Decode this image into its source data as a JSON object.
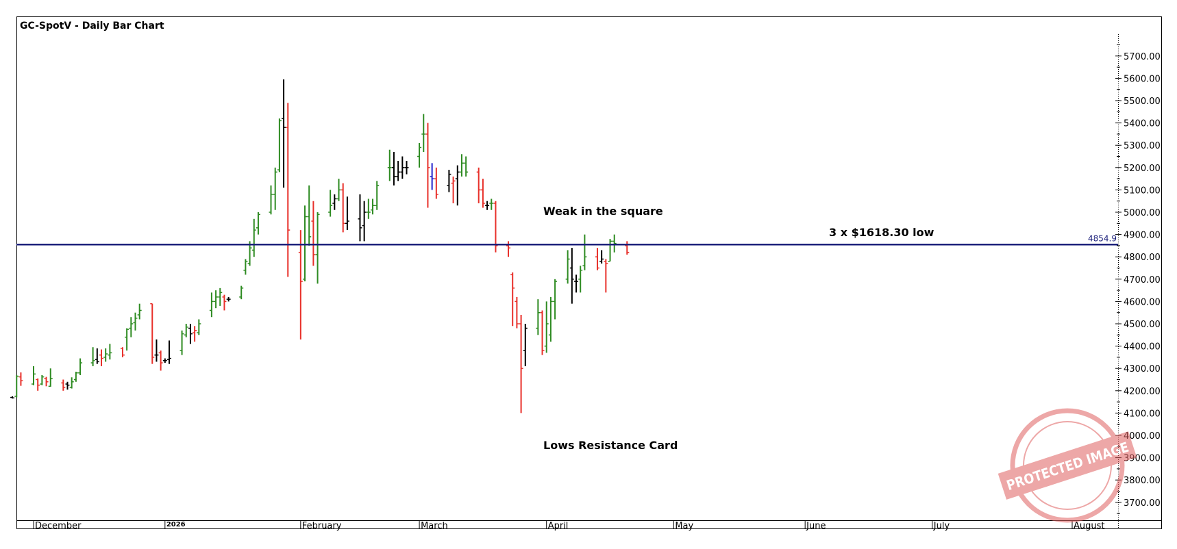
{
  "chart_data": {
    "type": "bar",
    "title": "GC-SpotV - Daily Bar Chart",
    "ylim": [
      3600,
      5800
    ],
    "y_ticks": [
      3700,
      3800,
      3900,
      4000,
      4100,
      4200,
      4300,
      4400,
      4500,
      4600,
      4700,
      4800,
      4900,
      5000,
      5100,
      5200,
      5300,
      5400,
      5500,
      5600,
      5700
    ],
    "y_tick_labels": [
      "3700.00",
      "3800.00",
      "3900.00",
      "4000.00",
      "4100.00",
      "4200.00",
      "4300.00",
      "4400.00",
      "4500.00",
      "4600.00",
      "4700.00",
      "4800.00",
      "4900.00",
      "5000.00",
      "5100.00",
      "5200.00",
      "5300.00",
      "5400.00",
      "5500.00",
      "5600.00",
      "5700.00"
    ],
    "x_tick_labels": [
      {
        "label": "December",
        "date": "2025-12-01"
      },
      {
        "label": "2026",
        "date": "2026-01-01"
      },
      {
        "label": "February",
        "date": "2026-02-02"
      },
      {
        "label": "March",
        "date": "2026-03-02"
      },
      {
        "label": "April",
        "date": "2026-04-01"
      },
      {
        "label": "May",
        "date": "2026-05-01"
      },
      {
        "label": "June",
        "date": "2026-06-01"
      },
      {
        "label": "July",
        "date": "2026-07-01"
      },
      {
        "label": "August",
        "date": "2026-08-03"
      }
    ],
    "grid": false,
    "bar_colors": {
      "up": "#2e8b22",
      "down": "#e8302a",
      "neutral": "#000000",
      "blue": "#2222cc"
    },
    "horizontal_line": {
      "value": 4854.9,
      "label": "4854.9",
      "color": "#1b1f7a"
    },
    "annotations": [
      {
        "text": "Weak in the square"
      },
      {
        "text": "3 x $1618.30 low"
      },
      {
        "text": "Lows Resistance Card"
      }
    ],
    "watermark_text": "PROTECTED IMAGE",
    "series": [
      {
        "values": [
          {
            "date": "2025-11-26",
            "o": 4170,
            "h": 4175,
            "l": 4165,
            "c": 4168,
            "d": "n"
          },
          {
            "date": "2025-11-27",
            "o": 4175,
            "h": 4270,
            "l": 4170,
            "c": 4265,
            "d": "u"
          },
          {
            "date": "2025-11-28",
            "o": 4262,
            "h": 4282,
            "l": 4222,
            "c": 4245,
            "d": "d"
          },
          {
            "date": "2025-12-01",
            "o": 4230,
            "h": 4310,
            "l": 4225,
            "c": 4275,
            "d": "u"
          },
          {
            "date": "2025-12-02",
            "o": 4250,
            "h": 4255,
            "l": 4200,
            "c": 4225,
            "d": "d"
          },
          {
            "date": "2025-12-03",
            "o": 4230,
            "h": 4270,
            "l": 4225,
            "c": 4262,
            "d": "u"
          },
          {
            "date": "2025-12-04",
            "o": 4255,
            "h": 4262,
            "l": 4220,
            "c": 4240,
            "d": "d"
          },
          {
            "date": "2025-12-05",
            "o": 4220,
            "h": 4300,
            "l": 4218,
            "c": 4255,
            "d": "u"
          },
          {
            "date": "2025-12-08",
            "o": 4235,
            "h": 4250,
            "l": 4200,
            "c": 4215,
            "d": "d"
          },
          {
            "date": "2025-12-09",
            "o": 4230,
            "h": 4240,
            "l": 4205,
            "c": 4225,
            "d": "n"
          },
          {
            "date": "2025-12-10",
            "o": 4215,
            "h": 4260,
            "l": 4210,
            "c": 4240,
            "d": "u"
          },
          {
            "date": "2025-12-11",
            "o": 4250,
            "h": 4285,
            "l": 4240,
            "c": 4280,
            "d": "u"
          },
          {
            "date": "2025-12-12",
            "o": 4280,
            "h": 4345,
            "l": 4270,
            "c": 4325,
            "d": "u"
          },
          {
            "date": "2025-12-15",
            "o": 4325,
            "h": 4395,
            "l": 4310,
            "c": 4335,
            "d": "u"
          },
          {
            "date": "2025-12-16",
            "o": 4340,
            "h": 4390,
            "l": 4320,
            "c": 4330,
            "d": "n"
          },
          {
            "date": "2025-12-17",
            "o": 4360,
            "h": 4385,
            "l": 4310,
            "c": 4345,
            "d": "d"
          },
          {
            "date": "2025-12-18",
            "o": 4350,
            "h": 4390,
            "l": 4330,
            "c": 4365,
            "d": "u"
          },
          {
            "date": "2025-12-19",
            "o": 4360,
            "h": 4410,
            "l": 4340,
            "c": 4370,
            "d": "u"
          },
          {
            "date": "2025-12-22",
            "o": 4390,
            "h": 4395,
            "l": 4350,
            "c": 4360,
            "d": "d"
          },
          {
            "date": "2025-12-23",
            "o": 4440,
            "h": 4480,
            "l": 4380,
            "c": 4475,
            "d": "u"
          },
          {
            "date": "2025-12-24",
            "o": 4480,
            "h": 4530,
            "l": 4440,
            "c": 4500,
            "d": "u"
          },
          {
            "date": "2025-12-25",
            "o": 4505,
            "h": 4550,
            "l": 4470,
            "c": 4525,
            "d": "u"
          },
          {
            "date": "2025-12-26",
            "o": 4540,
            "h": 4590,
            "l": 4520,
            "c": 4560,
            "d": "u"
          },
          {
            "date": "2025-12-29",
            "o": 4590,
            "h": 4590,
            "l": 4320,
            "c": 4350,
            "d": "d"
          },
          {
            "date": "2025-12-30",
            "o": 4360,
            "h": 4430,
            "l": 4330,
            "c": 4360,
            "d": "n"
          },
          {
            "date": "2025-12-31",
            "o": 4370,
            "h": 4380,
            "l": 4290,
            "c": 4325,
            "d": "d"
          },
          {
            "date": "2026-01-01",
            "o": 4335,
            "h": 4345,
            "l": 4325,
            "c": 4335,
            "d": "n"
          },
          {
            "date": "2026-01-02",
            "o": 4340,
            "h": 4425,
            "l": 4320,
            "c": 4345,
            "d": "n"
          },
          {
            "date": "2026-01-05",
            "o": 4380,
            "h": 4470,
            "l": 4360,
            "c": 4455,
            "d": "u"
          },
          {
            "date": "2026-01-06",
            "o": 4450,
            "h": 4500,
            "l": 4440,
            "c": 4485,
            "d": "u"
          },
          {
            "date": "2026-01-07",
            "o": 4480,
            "h": 4500,
            "l": 4410,
            "c": 4455,
            "d": "n"
          },
          {
            "date": "2026-01-08",
            "o": 4460,
            "h": 4490,
            "l": 4420,
            "c": 4470,
            "d": "d"
          },
          {
            "date": "2026-01-09",
            "o": 4460,
            "h": 4520,
            "l": 4450,
            "c": 4500,
            "d": "u"
          },
          {
            "date": "2026-01-12",
            "o": 4560,
            "h": 4640,
            "l": 4530,
            "c": 4600,
            "d": "u"
          },
          {
            "date": "2026-01-13",
            "o": 4600,
            "h": 4650,
            "l": 4570,
            "c": 4620,
            "d": "u"
          },
          {
            "date": "2026-01-14",
            "o": 4620,
            "h": 4660,
            "l": 4580,
            "c": 4640,
            "d": "u"
          },
          {
            "date": "2026-01-15",
            "o": 4620,
            "h": 4630,
            "l": 4560,
            "c": 4600,
            "d": "d"
          },
          {
            "date": "2026-01-16",
            "o": 4610,
            "h": 4620,
            "l": 4600,
            "c": 4610,
            "d": "n"
          },
          {
            "date": "2026-01-19",
            "o": 4620,
            "h": 4670,
            "l": 4610,
            "c": 4660,
            "d": "u"
          },
          {
            "date": "2026-01-20",
            "o": 4740,
            "h": 4790,
            "l": 4720,
            "c": 4780,
            "d": "u"
          },
          {
            "date": "2026-01-21",
            "o": 4770,
            "h": 4870,
            "l": 4760,
            "c": 4840,
            "d": "u"
          },
          {
            "date": "2026-01-22",
            "o": 4830,
            "h": 4970,
            "l": 4800,
            "c": 4920,
            "d": "u"
          },
          {
            "date": "2026-01-23",
            "o": 4930,
            "h": 5000,
            "l": 4900,
            "c": 4990,
            "d": "u"
          },
          {
            "date": "2026-01-26",
            "o": 5000,
            "h": 5120,
            "l": 4990,
            "c": 5080,
            "d": "u"
          },
          {
            "date": "2026-01-27",
            "o": 5080,
            "h": 5200,
            "l": 5010,
            "c": 5180,
            "d": "u"
          },
          {
            "date": "2026-01-28",
            "o": 5190,
            "h": 5420,
            "l": 5180,
            "c": 5410,
            "d": "u"
          },
          {
            "date": "2026-01-29",
            "o": 5420,
            "h": 5595,
            "l": 5110,
            "c": 5380,
            "d": "n"
          },
          {
            "date": "2026-01-30",
            "o": 5380,
            "h": 5490,
            "l": 4710,
            "c": 4920,
            "d": "d"
          },
          {
            "date": "2026-02-02",
            "o": 4820,
            "h": 4920,
            "l": 4430,
            "c": 4690,
            "d": "d"
          },
          {
            "date": "2026-02-03",
            "o": 4700,
            "h": 5030,
            "l": 4690,
            "c": 4980,
            "d": "u"
          },
          {
            "date": "2026-02-04",
            "o": 4980,
            "h": 5120,
            "l": 4850,
            "c": 4890,
            "d": "u"
          },
          {
            "date": "2026-02-05",
            "o": 4960,
            "h": 5050,
            "l": 4760,
            "c": 4810,
            "d": "d"
          },
          {
            "date": "2026-02-06",
            "o": 4810,
            "h": 5000,
            "l": 4680,
            "c": 4990,
            "d": "u"
          },
          {
            "date": "2026-02-09",
            "o": 5000,
            "h": 5100,
            "l": 4980,
            "c": 5030,
            "d": "u"
          },
          {
            "date": "2026-02-10",
            "o": 5040,
            "h": 5080,
            "l": 5010,
            "c": 5060,
            "d": "n"
          },
          {
            "date": "2026-02-11",
            "o": 5060,
            "h": 5150,
            "l": 5050,
            "c": 5100,
            "d": "u"
          },
          {
            "date": "2026-02-12",
            "o": 5100,
            "h": 5130,
            "l": 4910,
            "c": 4950,
            "d": "d"
          },
          {
            "date": "2026-02-13",
            "o": 4950,
            "h": 5070,
            "l": 4920,
            "c": 4960,
            "d": "n"
          },
          {
            "date": "2026-02-16",
            "o": 4970,
            "h": 5080,
            "l": 4870,
            "c": 4930,
            "d": "n"
          },
          {
            "date": "2026-02-17",
            "o": 4940,
            "h": 5050,
            "l": 4870,
            "c": 5000,
            "d": "n"
          },
          {
            "date": "2026-02-18",
            "o": 5000,
            "h": 5060,
            "l": 4970,
            "c": 5000,
            "d": "u"
          },
          {
            "date": "2026-02-19",
            "o": 5010,
            "h": 5060,
            "l": 4990,
            "c": 5030,
            "d": "u"
          },
          {
            "date": "2026-02-20",
            "o": 5030,
            "h": 5140,
            "l": 5010,
            "c": 5120,
            "d": "u"
          },
          {
            "date": "2026-02-23",
            "o": 5200,
            "h": 5280,
            "l": 5140,
            "c": 5200,
            "d": "u"
          },
          {
            "date": "2026-02-24",
            "o": 5200,
            "h": 5270,
            "l": 5120,
            "c": 5160,
            "d": "n"
          },
          {
            "date": "2026-02-25",
            "o": 5160,
            "h": 5230,
            "l": 5140,
            "c": 5180,
            "d": "n"
          },
          {
            "date": "2026-02-26",
            "o": 5180,
            "h": 5250,
            "l": 5150,
            "c": 5200,
            "d": "n"
          },
          {
            "date": "2026-02-27",
            "o": 5200,
            "h": 5230,
            "l": 5170,
            "c": 5200,
            "d": "n"
          },
          {
            "date": "2026-03-02",
            "o": 5250,
            "h": 5310,
            "l": 5200,
            "c": 5290,
            "d": "u"
          },
          {
            "date": "2026-03-03",
            "o": 5350,
            "h": 5440,
            "l": 5270,
            "c": 5350,
            "d": "u"
          },
          {
            "date": "2026-03-04",
            "o": 5350,
            "h": 5400,
            "l": 5020,
            "c": 5200,
            "d": "d"
          },
          {
            "date": "2026-03-05",
            "o": 5160,
            "h": 5220,
            "l": 5100,
            "c": 5150,
            "d": "b"
          },
          {
            "date": "2026-03-06",
            "o": 5150,
            "h": 5200,
            "l": 5060,
            "c": 5080,
            "d": "d"
          },
          {
            "date": "2026-03-09",
            "o": 5120,
            "h": 5190,
            "l": 5090,
            "c": 5170,
            "d": "n"
          },
          {
            "date": "2026-03-10",
            "o": 5130,
            "h": 5160,
            "l": 5040,
            "c": 5140,
            "d": "d"
          },
          {
            "date": "2026-03-11",
            "o": 5150,
            "h": 5210,
            "l": 5030,
            "c": 5180,
            "d": "n"
          },
          {
            "date": "2026-03-12",
            "o": 5180,
            "h": 5260,
            "l": 5160,
            "c": 5220,
            "d": "u"
          },
          {
            "date": "2026-03-13",
            "o": 5220,
            "h": 5250,
            "l": 5160,
            "c": 5180,
            "d": "u"
          },
          {
            "date": "2026-03-16",
            "o": 5180,
            "h": 5200,
            "l": 5040,
            "c": 5100,
            "d": "d"
          },
          {
            "date": "2026-03-17",
            "o": 5100,
            "h": 5150,
            "l": 5020,
            "c": 5040,
            "d": "d"
          },
          {
            "date": "2026-03-18",
            "o": 5030,
            "h": 5050,
            "l": 5010,
            "c": 5030,
            "d": "n"
          },
          {
            "date": "2026-03-19",
            "o": 5040,
            "h": 5060,
            "l": 5010,
            "c": 5040,
            "d": "u"
          },
          {
            "date": "2026-03-20",
            "o": 5040,
            "h": 5050,
            "l": 4820,
            "c": 4850,
            "d": "d"
          },
          {
            "date": "2026-03-23",
            "o": 4850,
            "h": 4870,
            "l": 4800,
            "c": 4840,
            "d": "d"
          },
          {
            "date": "2026-03-24",
            "o": 4720,
            "h": 4730,
            "l": 4490,
            "c": 4660,
            "d": "d"
          },
          {
            "date": "2026-03-25",
            "o": 4600,
            "h": 4620,
            "l": 4480,
            "c": 4500,
            "d": "d"
          },
          {
            "date": "2026-03-26",
            "o": 4500,
            "h": 4540,
            "l": 4100,
            "c": 4300,
            "d": "d"
          },
          {
            "date": "2026-03-27",
            "o": 4380,
            "h": 4500,
            "l": 4310,
            "c": 4480,
            "d": "n"
          },
          {
            "date": "2026-03-30",
            "o": 4480,
            "h": 4610,
            "l": 4450,
            "c": 4550,
            "d": "u"
          },
          {
            "date": "2026-03-31",
            "o": 4550,
            "h": 4560,
            "l": 4360,
            "c": 4380,
            "d": "d"
          },
          {
            "date": "2026-04-01",
            "o": 4400,
            "h": 4600,
            "l": 4370,
            "c": 4500,
            "d": "u"
          },
          {
            "date": "2026-04-02",
            "o": 4450,
            "h": 4620,
            "l": 4420,
            "c": 4600,
            "d": "u"
          },
          {
            "date": "2026-04-03",
            "o": 4600,
            "h": 4700,
            "l": 4520,
            "c": 4690,
            "d": "u"
          },
          {
            "date": "2026-04-06",
            "o": 4700,
            "h": 4830,
            "l": 4680,
            "c": 4790,
            "d": "u"
          },
          {
            "date": "2026-04-07",
            "o": 4750,
            "h": 4840,
            "l": 4590,
            "c": 4700,
            "d": "n"
          },
          {
            "date": "2026-04-08",
            "o": 4690,
            "h": 4720,
            "l": 4640,
            "c": 4690,
            "d": "n"
          },
          {
            "date": "2026-04-09",
            "o": 4700,
            "h": 4760,
            "l": 4640,
            "c": 4740,
            "d": "u"
          },
          {
            "date": "2026-04-10",
            "o": 4760,
            "h": 4900,
            "l": 4740,
            "c": 4800,
            "d": "u"
          },
          {
            "date": "2026-04-13",
            "o": 4800,
            "h": 4840,
            "l": 4740,
            "c": 4750,
            "d": "d"
          },
          {
            "date": "2026-04-14",
            "o": 4780,
            "h": 4830,
            "l": 4770,
            "c": 4790,
            "d": "n"
          },
          {
            "date": "2026-04-15",
            "o": 4780,
            "h": 4790,
            "l": 4640,
            "c": 4770,
            "d": "d"
          },
          {
            "date": "2026-04-16",
            "o": 4780,
            "h": 4880,
            "l": 4780,
            "c": 4870,
            "d": "u"
          },
          {
            "date": "2026-04-17",
            "o": 4870,
            "h": 4900,
            "l": 4820,
            "c": 4860,
            "d": "u"
          },
          {
            "date": "2026-04-20",
            "o": 4850,
            "h": 4870,
            "l": 4810,
            "c": 4820,
            "d": "d"
          }
        ]
      }
    ]
  }
}
